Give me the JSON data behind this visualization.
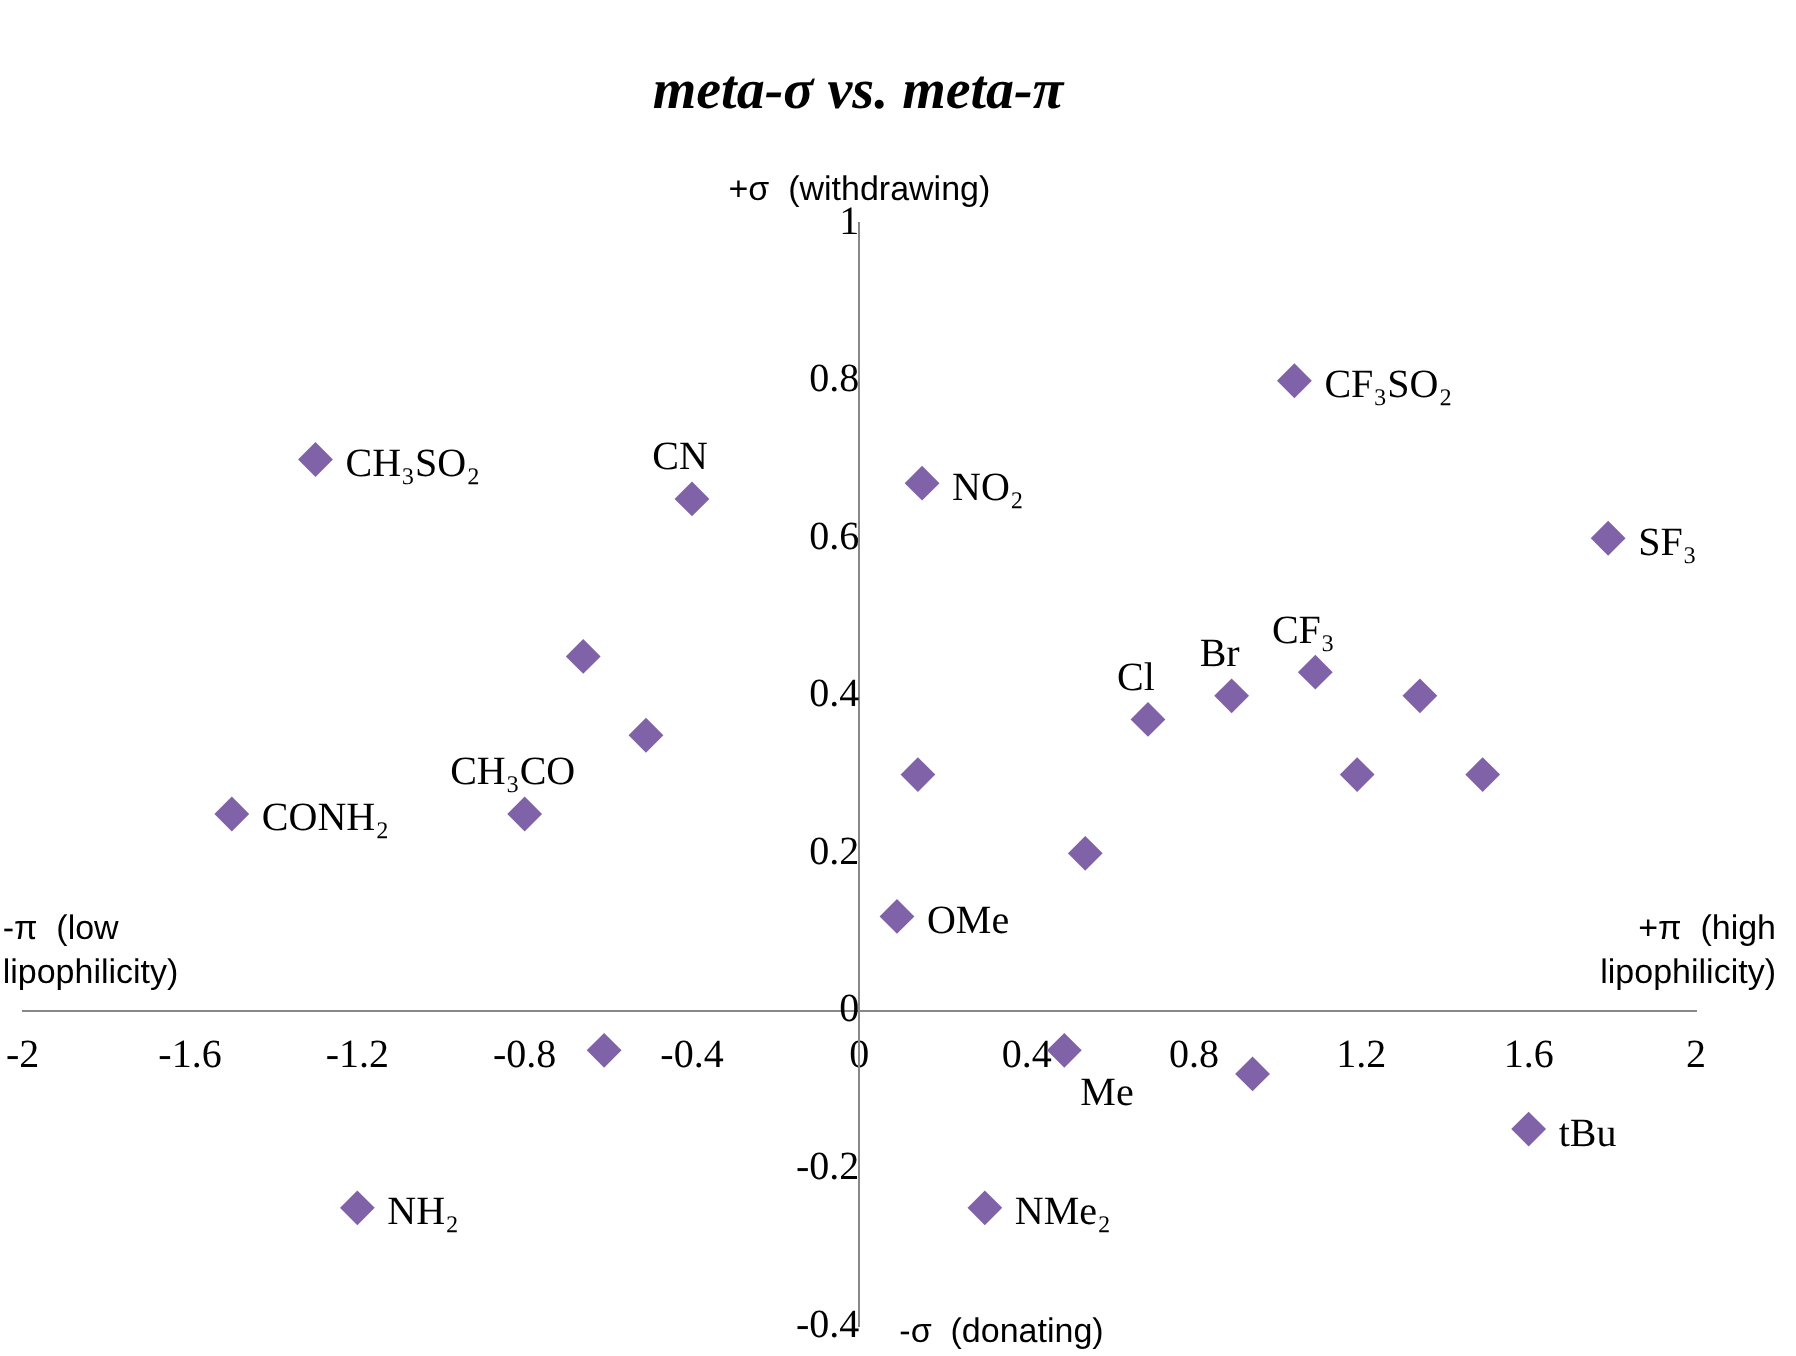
{
  "chart_data": {
    "type": "scatter",
    "title": "meta-σ vs. meta-π",
    "ylabel": "+σ  (withdrawing)",
    "xlabel": "+π  (high lipophilicity)",
    "series": [
      {
        "color": "#7f62a8",
        "x": [
          -1.3,
          -0.4,
          0.15,
          1.04,
          1.79,
          -0.66,
          -0.51,
          -0.8,
          -1.5,
          0.14,
          0.54,
          0.09,
          0.69,
          0.89,
          1.09,
          1.34,
          1.19,
          1.49,
          -0.61,
          0.49,
          0.94,
          1.6,
          -1.2,
          0.3
        ],
        "values": [
          0.7,
          0.65,
          0.67,
          0.8,
          0.6,
          0.45,
          0.35,
          0.25,
          0.25,
          0.3,
          0.2,
          0.12,
          0.37,
          0.4,
          0.43,
          0.4,
          0.3,
          0.3,
          -0.05,
          -0.05,
          -0.08,
          -0.15,
          -0.25,
          -0.25
        ]
      }
    ],
    "marker": "diamond",
    "legend": false,
    "grid": false,
    "xlim": [
      -2,
      2
    ],
    "xticks": [
      -2,
      -1.6,
      -1.2,
      -0.8,
      -0.4,
      0,
      0.4,
      0.8,
      1.2,
      1.6,
      2
    ],
    "ylim": [
      -0.4,
      1
    ],
    "yticks": [
      -0.4,
      -0.2,
      0,
      0.2,
      0.4,
      0.6,
      0.8,
      1
    ],
    "annotations": [
      "-π  (low lipophilicity)",
      "-σ  (donating)",
      {
        "text": "CH₃SO₂",
        "x": -1.3,
        "y": 0.7
      },
      {
        "text": "CN",
        "x": -0.4,
        "y": 0.65
      },
      {
        "text": "NO₂",
        "x": 0.15,
        "y": 0.67
      },
      {
        "text": "CF₃SO₂",
        "x": 1.04,
        "y": 0.8
      },
      {
        "text": "SF₃",
        "x": 1.79,
        "y": 0.6
      },
      {
        "text": "CH₃CO",
        "x": -0.8,
        "y": 0.25
      },
      {
        "text": "CONH₂",
        "x": -1.5,
        "y": 0.25
      },
      {
        "text": "OMe",
        "x": 0.09,
        "y": 0.12
      },
      {
        "text": "Cl",
        "x": 0.69,
        "y": 0.37
      },
      {
        "text": "Br",
        "x": 0.89,
        "y": 0.4
      },
      {
        "text": "CF₃",
        "x": 1.09,
        "y": 0.43
      },
      {
        "text": "Me",
        "x": 0.49,
        "y": -0.05
      },
      {
        "text": "tBu",
        "x": 1.6,
        "y": -0.15
      },
      {
        "text": "NH₂",
        "x": -1.2,
        "y": -0.25
      },
      {
        "text": "NMe₂",
        "x": 0.3,
        "y": -0.25
      }
    ]
  }
}
